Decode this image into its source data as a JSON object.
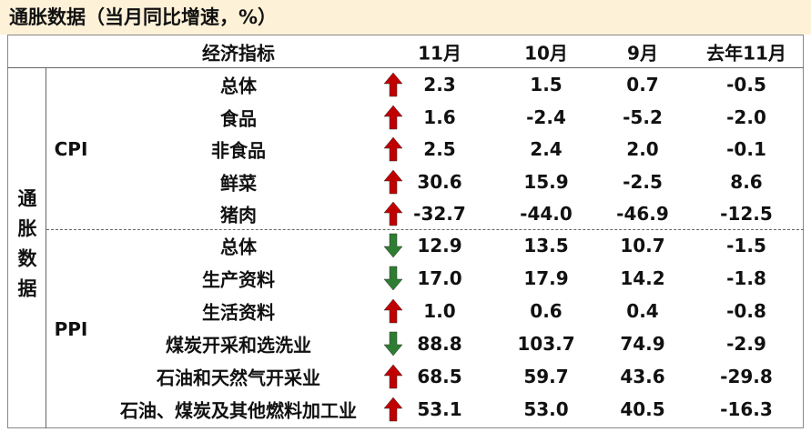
{
  "title": "通胀数据（当月同比增速，%）",
  "table": {
    "side_label": "通胀数据",
    "header": [
      "经济指标",
      "11月",
      "10月",
      "9月",
      "去年11月"
    ],
    "up_color": "#c00000",
    "down_color": "#2e7d32",
    "groups": [
      {
        "name": "CPI",
        "rows": [
          {
            "label": "总体",
            "arrow": "up",
            "values": [
              "2.3",
              "1.5",
              "0.7",
              "-0.5"
            ]
          },
          {
            "label": "食品",
            "arrow": "up",
            "values": [
              "1.6",
              "-2.4",
              "-5.2",
              "-2.0"
            ]
          },
          {
            "label": "非食品",
            "arrow": "up",
            "values": [
              "2.5",
              "2.4",
              "2.0",
              "-0.1"
            ]
          },
          {
            "label": "鲜菜",
            "arrow": "up",
            "values": [
              "30.6",
              "15.9",
              "-2.5",
              "8.6"
            ]
          },
          {
            "label": "猪肉",
            "arrow": "up",
            "values": [
              "-32.7",
              "-44.0",
              "-46.9",
              "-12.5"
            ]
          }
        ]
      },
      {
        "name": "PPI",
        "rows": [
          {
            "label": "总体",
            "arrow": "down",
            "values": [
              "12.9",
              "13.5",
              "10.7",
              "-1.5"
            ]
          },
          {
            "label": "生产资料",
            "arrow": "down",
            "values": [
              "17.0",
              "17.9",
              "14.2",
              "-1.8"
            ]
          },
          {
            "label": "生活资料",
            "arrow": "up",
            "values": [
              "1.0",
              "0.6",
              "0.4",
              "-0.8"
            ]
          },
          {
            "label": "煤炭开采和选洗业",
            "arrow": "down",
            "values": [
              "88.8",
              "103.7",
              "74.9",
              "-2.9"
            ]
          },
          {
            "label": "石油和天然气开采业",
            "arrow": "up",
            "values": [
              "68.5",
              "59.7",
              "43.6",
              "-29.8"
            ]
          },
          {
            "label": "石油、煤炭及其他燃料加工业",
            "arrow": "up",
            "values": [
              "53.1",
              "53.0",
              "40.5",
              "-16.3"
            ]
          }
        ]
      }
    ]
  }
}
